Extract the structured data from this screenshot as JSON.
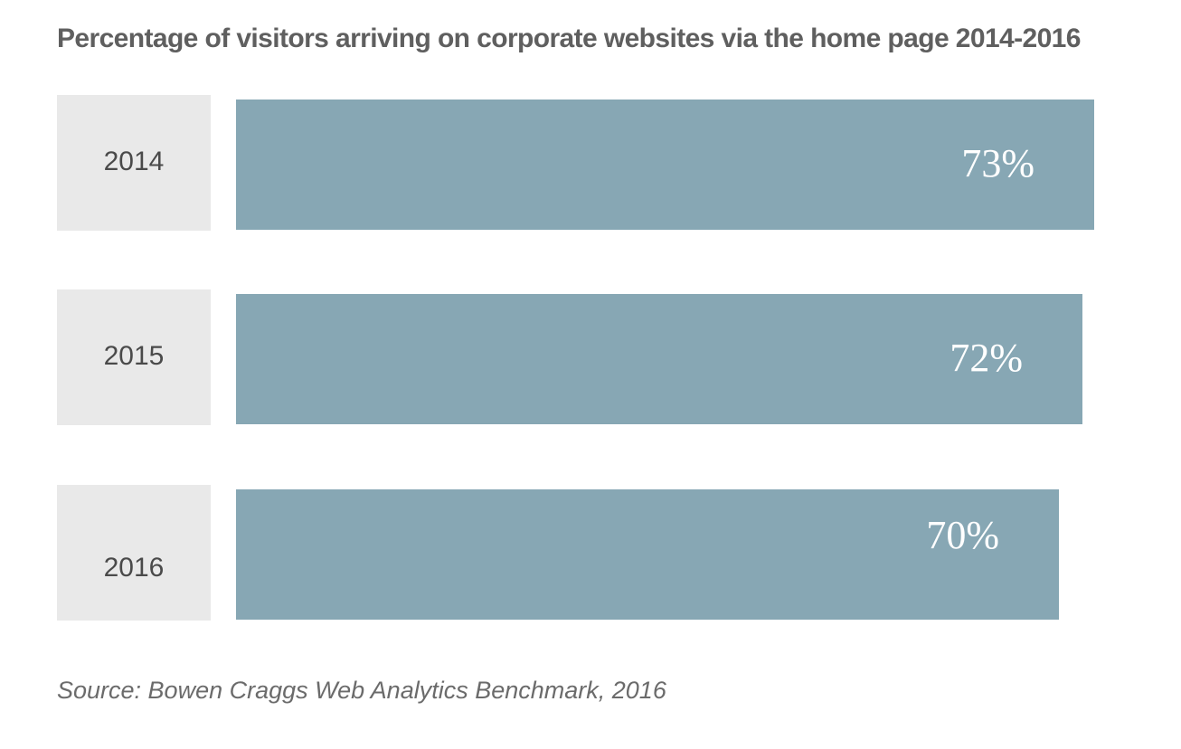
{
  "chart_data": {
    "type": "bar",
    "orientation": "horizontal",
    "title": "Percentage of visitors arriving on corporate websites via the home page 2014-2016",
    "categories": [
      "2014",
      "2015",
      "2016"
    ],
    "values": [
      73,
      72,
      70
    ],
    "value_labels": [
      "73%",
      "72%",
      "70%"
    ],
    "unit": "%",
    "xlabel": "",
    "ylabel": "",
    "grid": false,
    "legend": "none"
  },
  "source": "Source: Bowen Craggs Web Analytics Benchmark, 2016",
  "colors": {
    "bar": "#87a7b4",
    "label_box": "#e9e9e9",
    "title": "#5f5f5f",
    "source": "#6b6b6b"
  }
}
